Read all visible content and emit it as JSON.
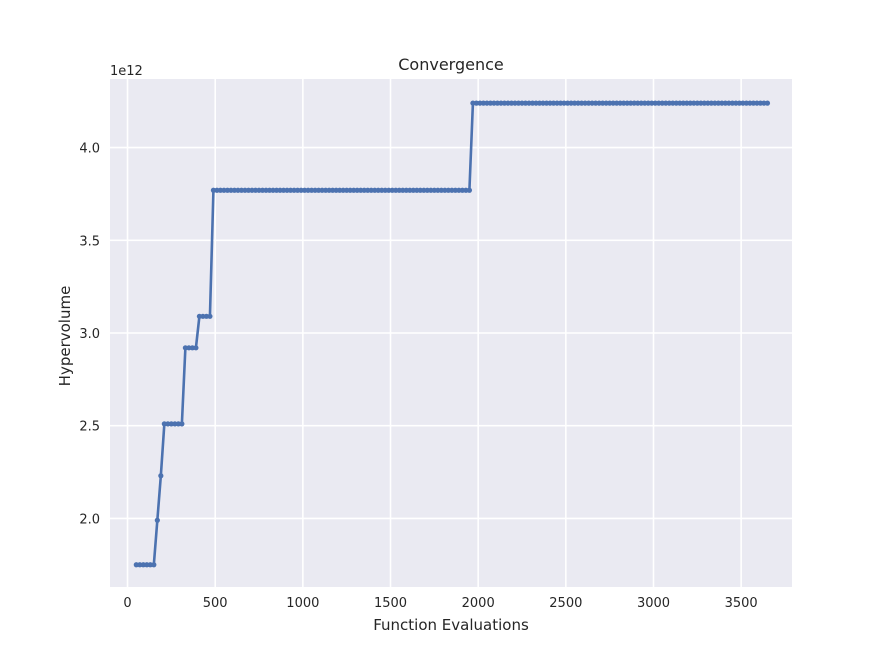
{
  "chart_data": {
    "type": "line",
    "title": "Convergence",
    "xlabel": "Function Evaluations",
    "ylabel": "Hypervolume",
    "y_multiplier_label": "1e12",
    "xlim": [
      -100,
      3790
    ],
    "ylim": [
      1.63,
      4.37
    ],
    "x_ticks": [
      0,
      500,
      1000,
      1500,
      2000,
      2500,
      3000,
      3500
    ],
    "x_tick_labels": [
      "0",
      "500",
      "1000",
      "1500",
      "2000",
      "2500",
      "3000",
      "3500"
    ],
    "y_ticks": [
      2.0,
      2.5,
      3.0,
      3.5,
      4.0
    ],
    "y_tick_labels": [
      "2.0",
      "2.5",
      "3.0",
      "3.5",
      "4.0"
    ],
    "grid": true,
    "colors": {
      "background": "#eaeaf2",
      "grid": "#ffffff",
      "line": "#4c72b0",
      "text": "#262626"
    },
    "x_step": 20,
    "series": [
      {
        "x_start": 50,
        "segments": [
          {
            "x_end": 150,
            "y": 1.75
          },
          {
            "x_end": 170,
            "y": 1.99
          },
          {
            "x_end": 190,
            "y": 2.23
          },
          {
            "x_end": 310,
            "y": 2.51
          },
          {
            "x_end": 390,
            "y": 2.92
          },
          {
            "x_end": 470,
            "y": 3.09
          },
          {
            "x_end": 1950,
            "y": 3.77
          },
          {
            "x_end": 3650,
            "y": 4.24
          }
        ]
      }
    ]
  }
}
